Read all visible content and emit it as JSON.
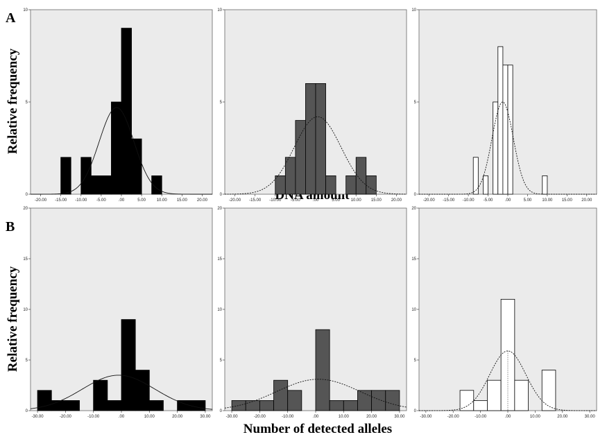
{
  "figure": {
    "panel_a_letter": "A",
    "panel_b_letter": "B",
    "row_a_ylabel": "Relative frequency",
    "row_b_ylabel": "Relative frequency",
    "row_a_xlabel": "DNA amount",
    "row_b_xlabel": "Number of detected alleles"
  },
  "chart_data": [
    {
      "type": "bar",
      "panel": "A1",
      "bin_width": 2.5,
      "bin_starts": [
        -15,
        -10,
        -7.5,
        -5,
        -2.5,
        0,
        2.5,
        7.5
      ],
      "values": [
        2,
        2,
        1,
        1,
        5,
        9,
        3,
        1
      ],
      "xlim": [
        -22.5,
        22.5
      ],
      "ylim": [
        0,
        10
      ],
      "xticks": [
        "-20.00",
        "-15.00",
        "-10.00",
        "-5.00",
        ".00",
        "5.00",
        "10.00",
        "15.00",
        "20.00"
      ],
      "yticks": [
        "0",
        "5",
        "10"
      ],
      "curve": {
        "mean": -1.2,
        "sd": 4.3,
        "peak": 4.7,
        "style": "solid"
      },
      "fill": "#000000"
    },
    {
      "type": "bar",
      "panel": "A2",
      "bin_width": 2.5,
      "bin_starts": [
        -10,
        -7.5,
        -5,
        -2.5,
        0,
        2.5,
        7.5,
        10,
        12.5
      ],
      "values": [
        1,
        2,
        4,
        6,
        6,
        1,
        1,
        2,
        1
      ],
      "xlim": [
        -22.5,
        22.5
      ],
      "ylim": [
        0,
        10
      ],
      "xticks": [
        "-20.00",
        "-15.00",
        "-10.00",
        "-5.00",
        ".00",
        "5.00",
        "10.00",
        "15.00",
        "20.00"
      ],
      "yticks": [
        "0",
        "5",
        "10"
      ],
      "curve": {
        "mean": 0.5,
        "sd": 5.8,
        "peak": 4.2,
        "style": "dotted"
      },
      "fill": "#555555"
    },
    {
      "type": "bar",
      "panel": "A3",
      "bin_width": 1.25,
      "bin_starts": [
        -8.75,
        -6.25,
        -3.75,
        -2.5,
        -1.25,
        0,
        8.75
      ],
      "values": [
        2,
        1,
        5,
        8,
        7,
        7,
        1
      ],
      "xlim": [
        -22.5,
        22.5
      ],
      "ylim": [
        0,
        10
      ],
      "xticks": [
        "-20.00",
        "-15.00",
        "-10.00",
        "-5.00",
        ".00",
        "5.00",
        "10.00",
        "15.00",
        "20.00"
      ],
      "yticks": [
        "0",
        "5",
        "10"
      ],
      "curve": {
        "mean": -1.3,
        "sd": 2.7,
        "peak": 5,
        "style": "dotted"
      },
      "ref_line": -1.3,
      "fill": "#ffffff"
    },
    {
      "type": "bar",
      "panel": "B1",
      "bin_width": 5,
      "bin_starts": [
        -30,
        -25,
        -20,
        -10,
        -5,
        0,
        5,
        10,
        20,
        25
      ],
      "values": [
        2,
        1,
        1,
        3,
        1,
        9,
        4,
        1,
        1,
        1
      ],
      "xlim": [
        -32.5,
        32.5
      ],
      "ylim": [
        0,
        20
      ],
      "xticks": [
        "-30.00",
        "-20.00",
        "-10.00",
        ".00",
        "10.00",
        "20.00",
        "30.00"
      ],
      "yticks": [
        "0",
        "5",
        "10",
        "15",
        "20"
      ],
      "curve": {
        "mean": -1,
        "sd": 13,
        "peak": 3.5,
        "style": "solid"
      },
      "fill": "#000000"
    },
    {
      "type": "bar",
      "panel": "B2",
      "bin_width": 5,
      "bin_starts": [
        -30,
        -25,
        -20,
        -15,
        -10,
        0,
        5,
        10,
        15,
        20,
        25
      ],
      "values": [
        1,
        1,
        1,
        3,
        2,
        8,
        1,
        1,
        2,
        2,
        2
      ],
      "xlim": [
        -32.5,
        32.5
      ],
      "ylim": [
        0,
        20
      ],
      "xticks": [
        "-30.00",
        "-20.00",
        "-10.00",
        ".00",
        "10.00",
        "20.00",
        "30.00"
      ],
      "yticks": [
        "0",
        "5",
        "10",
        "15",
        "20"
      ],
      "curve": {
        "mean": 1,
        "sd": 15,
        "peak": 3.1,
        "style": "dotted"
      },
      "fill": "#555555"
    },
    {
      "type": "bar",
      "panel": "B3",
      "bin_width": 5,
      "bin_starts": [
        -17.5,
        -12.5,
        -7.5,
        -2.5,
        2.5,
        12.5
      ],
      "values": [
        2,
        1,
        3,
        11,
        3,
        4
      ],
      "xlim": [
        -32.5,
        32.5
      ],
      "ylim": [
        0,
        20
      ],
      "xticks": [
        "-30.00",
        "-20.00",
        "-10.00",
        ".00",
        "10.00",
        "20.00",
        "30.00"
      ],
      "yticks": [
        "0",
        "5",
        "10",
        "15",
        "20"
      ],
      "curve": {
        "mean": 0,
        "sd": 6.6,
        "peak": 5.9,
        "style": "dotted"
      },
      "ref_line": 0,
      "fill": "#ffffff"
    }
  ]
}
